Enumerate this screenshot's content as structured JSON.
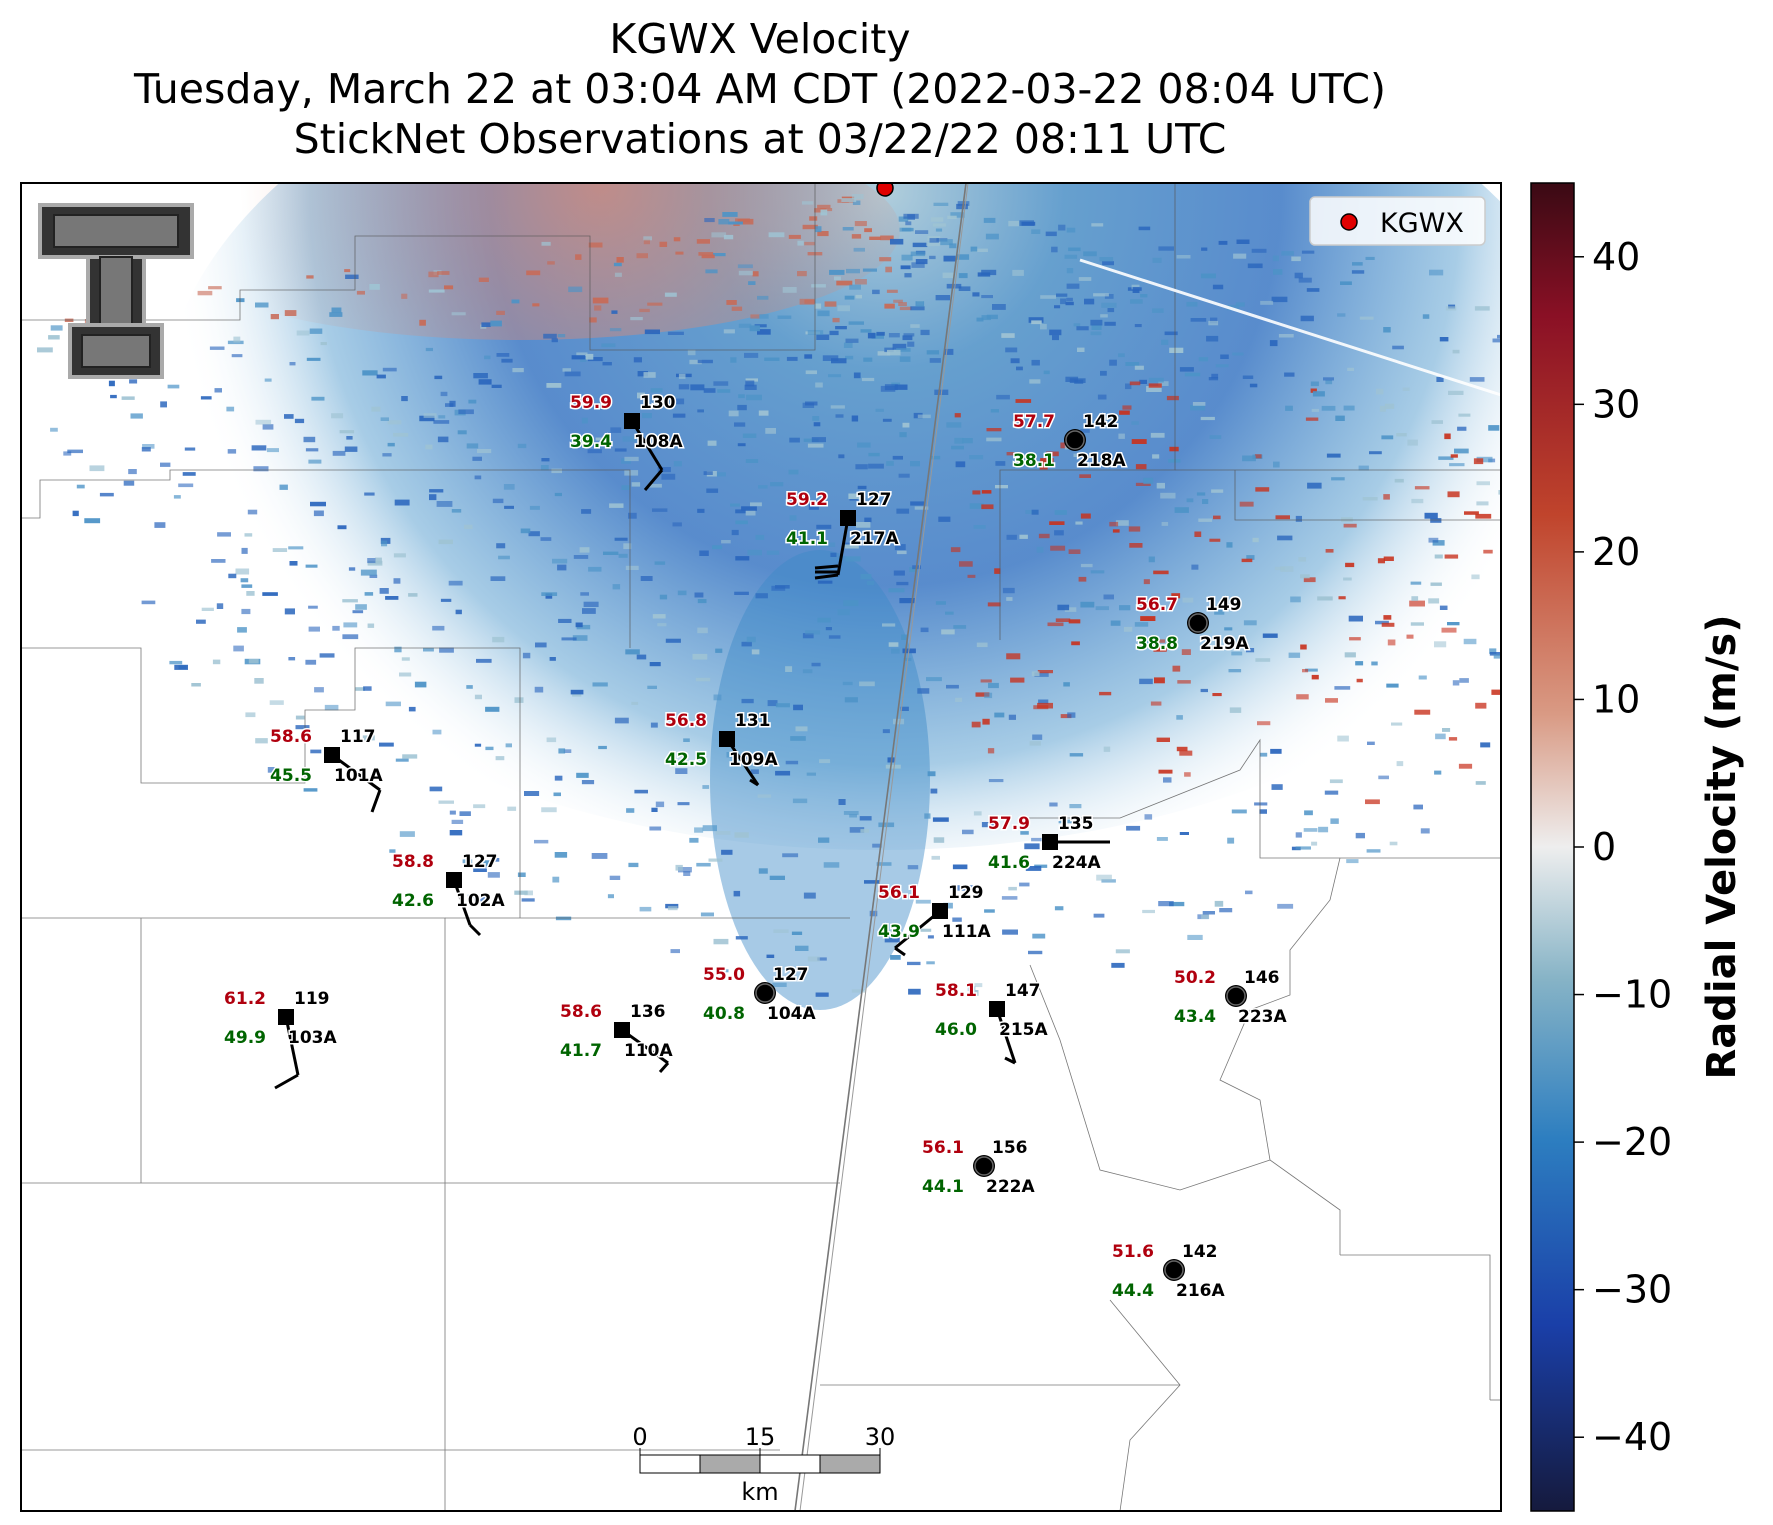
{
  "title": {
    "line1": "KGWX Velocity",
    "line2": "Tuesday, March 22 at 03:04 AM CDT (2022-03-22 08:04 UTC)",
    "line3": "StickNet Observations at 03/22/22 08:11 UTC"
  },
  "legend": {
    "label": "KGWX",
    "marker_color": "#e00000"
  },
  "radar": {
    "name": "KGWX"
  },
  "colorbar": {
    "label": "Radial Velocity (m/s)",
    "range": [
      -45,
      45
    ],
    "ticks": [
      40,
      30,
      20,
      10,
      0,
      -10,
      -20,
      -30,
      -40
    ],
    "tick_labels": [
      "40",
      "30",
      "20",
      "10",
      "0",
      "−10",
      "−20",
      "−30",
      "−40"
    ],
    "colors": [
      "#151a3d",
      "#1a3fa8",
      "#2d7ec0",
      "#86b3c6",
      "#eeeeee",
      "#d99a84",
      "#c0442c",
      "#8a1025",
      "#3a0a14"
    ]
  },
  "scalebar": {
    "ticks": [
      "0",
      "15",
      "30"
    ],
    "unit": "km"
  },
  "stations": [
    {
      "id": "108A",
      "red": "59.9",
      "dir": "130",
      "green": "39.4",
      "marker": "square"
    },
    {
      "id": "218A",
      "red": "57.7",
      "dir": "142",
      "green": "38.1",
      "marker": "circle"
    },
    {
      "id": "217A",
      "red": "59.2",
      "dir": "127",
      "green": "41.1",
      "marker": "square"
    },
    {
      "id": "219A",
      "red": "56.7",
      "dir": "149",
      "green": "38.8",
      "marker": "circle"
    },
    {
      "id": "101A",
      "red": "58.6",
      "dir": "117",
      "green": "45.5",
      "marker": "square"
    },
    {
      "id": "109A",
      "red": "56.8",
      "dir": "131",
      "green": "42.5",
      "marker": "square"
    },
    {
      "id": "224A",
      "red": "57.9",
      "dir": "135",
      "green": "41.6",
      "marker": "square"
    },
    {
      "id": "102A",
      "red": "58.8",
      "dir": "127",
      "green": "42.6",
      "marker": "square"
    },
    {
      "id": "111A",
      "red": "56.1",
      "dir": "129",
      "green": "43.9",
      "marker": "square"
    },
    {
      "id": "104A",
      "red": "55.0",
      "dir": "127",
      "green": "40.8",
      "marker": "circle"
    },
    {
      "id": "223A",
      "red": "50.2",
      "dir": "146",
      "green": "43.4",
      "marker": "circle"
    },
    {
      "id": "103A",
      "red": "61.2",
      "dir": "119",
      "green": "49.9",
      "marker": "square"
    },
    {
      "id": "215A",
      "red": "58.1",
      "dir": "147",
      "green": "46.0",
      "marker": "square"
    },
    {
      "id": "110A",
      "red": "58.6",
      "dir": "136",
      "green": "41.7",
      "marker": "square"
    },
    {
      "id": "222A",
      "red": "56.1",
      "dir": "156",
      "green": "44.1",
      "marker": "circle"
    },
    {
      "id": "216A",
      "red": "51.6",
      "dir": "142",
      "green": "44.4",
      "marker": "circle"
    }
  ]
}
